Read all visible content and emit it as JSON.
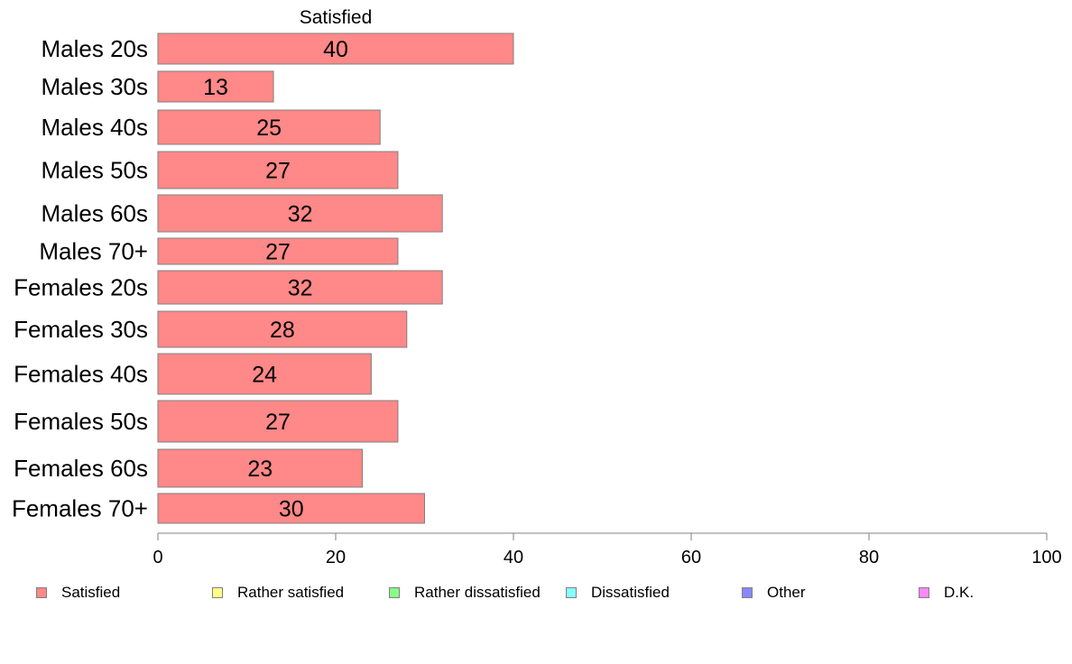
{
  "chart_data": {
    "type": "bar",
    "orientation": "horizontal",
    "stacked": true,
    "panel_title": "Satisfied",
    "categories": [
      "Males 20s",
      "Males 30s",
      "Males 40s",
      "Males 50s",
      "Males 60s",
      "Males 70+",
      "Females 20s",
      "Females 30s",
      "Females 40s",
      "Females 50s",
      "Females 60s",
      "Females 70+"
    ],
    "series": [
      {
        "name": "Satisfied",
        "color": "#ff8888",
        "values": [
          40,
          13,
          25,
          27,
          32,
          27,
          32,
          28,
          24,
          27,
          23,
          30
        ],
        "labels": [
          "40",
          "13",
          "25",
          "27",
          "32",
          "27",
          "32",
          "28",
          "24",
          "27",
          "23",
          "30"
        ]
      }
    ],
    "xlim": [
      0,
      100
    ],
    "xticks": [
      0,
      20,
      40,
      60,
      80,
      100
    ],
    "xtick_labels": [
      "0",
      "20",
      "40",
      "60",
      "80",
      "100"
    ],
    "grid": false,
    "legend": {
      "placement": "bottom",
      "entries": [
        {
          "label": "Satisfied",
          "color": "#ff8888"
        },
        {
          "label": "Rather satisfied",
          "color": "#ffff88"
        },
        {
          "label": "Rather dissatisfied",
          "color": "#88ff88"
        },
        {
          "label": "Dissatisfied",
          "color": "#88ffff"
        },
        {
          "label": "Other",
          "color": "#8888ff"
        },
        {
          "label": "D.K.",
          "color": "#ff88ff"
        }
      ]
    }
  }
}
